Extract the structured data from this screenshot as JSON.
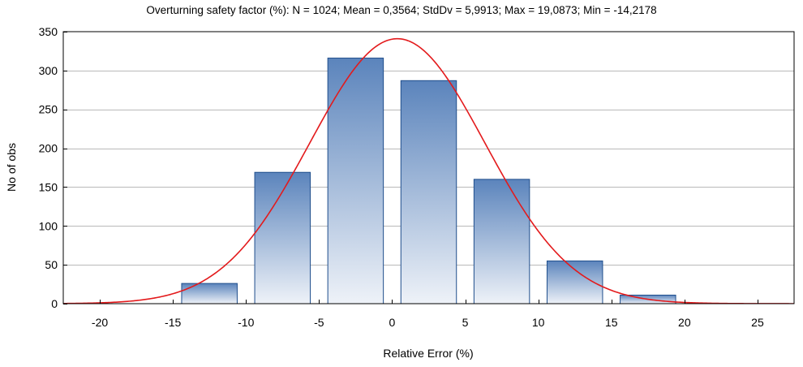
{
  "chart_data": {
    "type": "bar",
    "title": "Overturning safety factor (%):   N = 1024; Mean = 0,3564; StdDv = 5,9913; Max = 19,0873; Min = -14,2178",
    "xlabel": "Relative Error (%)",
    "ylabel": "No of obs",
    "xlim": [
      -22.5,
      27.5
    ],
    "ylim": [
      0,
      350
    ],
    "x_ticks": [
      -20,
      -15,
      -10,
      -5,
      0,
      5,
      10,
      15,
      20,
      25
    ],
    "y_ticks": [
      0,
      50,
      100,
      150,
      200,
      250,
      300,
      350
    ],
    "grid": "horizontal",
    "bins": [
      {
        "from": -15,
        "to": -10,
        "count": 26
      },
      {
        "from": -10,
        "to": -5,
        "count": 169
      },
      {
        "from": -5,
        "to": 0,
        "count": 316
      },
      {
        "from": 0,
        "to": 5,
        "count": 287
      },
      {
        "from": 5,
        "to": 10,
        "count": 160
      },
      {
        "from": 10,
        "to": 15,
        "count": 55
      },
      {
        "from": 15,
        "to": 20,
        "count": 11
      }
    ],
    "normal_fit": {
      "n": 1024,
      "mean": 0.3564,
      "stdev": 5.9913,
      "bin_width": 5,
      "color": "#e31a1c"
    },
    "colors": {
      "bar_top": "#5b84bc",
      "bar_bottom": "#eef2f8",
      "bar_stroke": "#1f4e8c",
      "grid": "#000000"
    }
  }
}
